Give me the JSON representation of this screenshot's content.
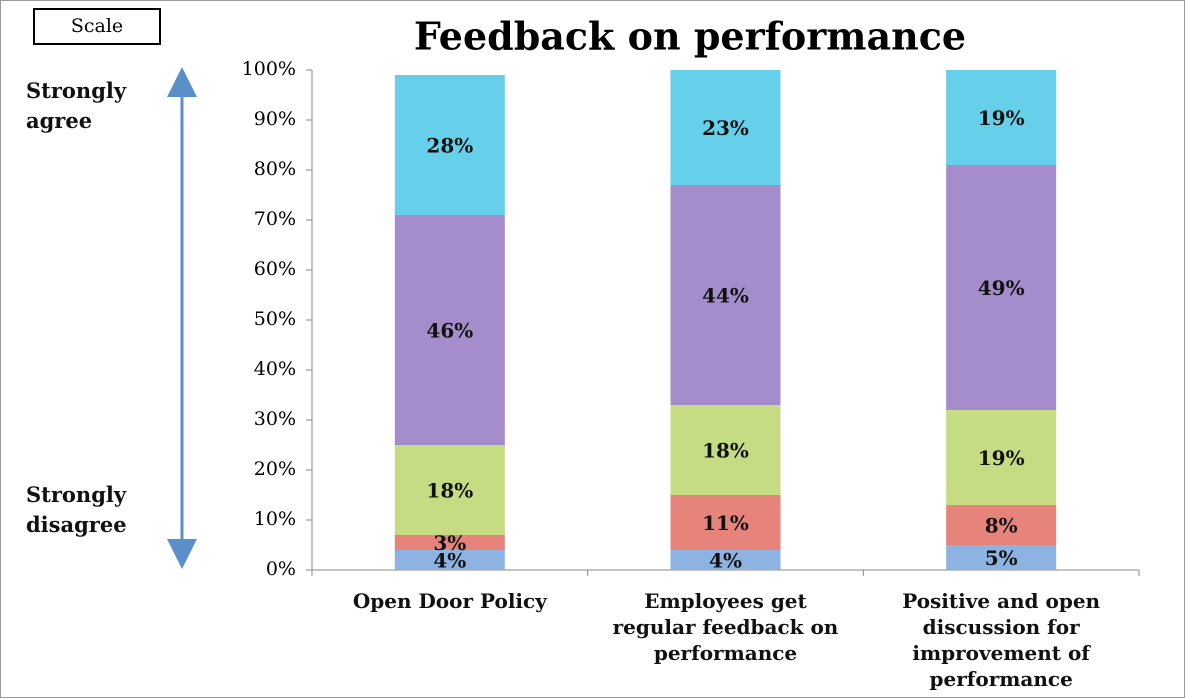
{
  "chart_data": {
    "type": "stacked_bar",
    "title": "Feedback on performance",
    "annotations": [
      "Scale",
      "Strongly agree",
      "Strongly disagree"
    ],
    "categories": [
      "Open Door Policy",
      "Employees get regular feedback on performance",
      "Positive and open discussion for improvement of performance"
    ],
    "series": [
      {
        "color": "#8db3e2",
        "values": [
          4,
          4,
          5
        ],
        "value_labels": [
          "4%",
          "4%",
          "5%"
        ]
      },
      {
        "color": "#e6847c",
        "values": [
          3,
          11,
          8
        ],
        "value_labels": [
          "3%",
          "11%",
          "8%"
        ]
      },
      {
        "color": "#c5dc82",
        "values": [
          18,
          18,
          19
        ],
        "value_labels": [
          "18%",
          "18%",
          "19%"
        ]
      },
      {
        "color": "#a58ccb",
        "values": [
          46,
          44,
          49
        ],
        "value_labels": [
          "46%",
          "44%",
          "49%"
        ]
      },
      {
        "color": "#66d0ea",
        "values": [
          28,
          23,
          19
        ],
        "value_labels": [
          "28%",
          "23%",
          "19%"
        ]
      }
    ],
    "ylim": [
      0,
      100
    ],
    "yticks": [
      {
        "value": 0,
        "label": "0%"
      },
      {
        "value": 10,
        "label": "10%"
      },
      {
        "value": 20,
        "label": "20%"
      },
      {
        "value": 30,
        "label": "30%"
      },
      {
        "value": 40,
        "label": "40%"
      },
      {
        "value": 50,
        "label": "50%"
      },
      {
        "value": 60,
        "label": "60%"
      },
      {
        "value": 70,
        "label": "70%"
      },
      {
        "value": 80,
        "label": "80%"
      },
      {
        "value": 90,
        "label": "90%"
      },
      {
        "value": 100,
        "label": "100%"
      }
    ]
  }
}
